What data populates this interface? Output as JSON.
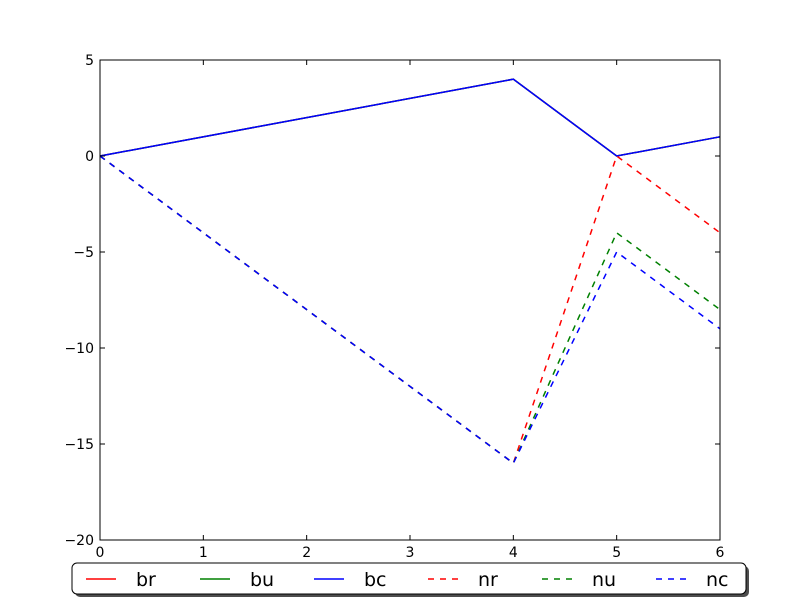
{
  "chart_data": {
    "type": "line",
    "title": "",
    "xlabel": "",
    "ylabel": "",
    "xlim": [
      0,
      6
    ],
    "ylim": [
      -20,
      5
    ],
    "xticks": [
      0,
      1,
      2,
      3,
      4,
      5,
      6
    ],
    "yticks": [
      5,
      0,
      -5,
      -10,
      -15,
      -20
    ],
    "xtick_labels": [
      "0",
      "1",
      "2",
      "3",
      "4",
      "5",
      "6"
    ],
    "ytick_labels": [
      "5",
      "0",
      "−5",
      "−10",
      "−15",
      "−20"
    ],
    "grid": false,
    "legend": {
      "placement": "bottom",
      "columns": 6,
      "rounded": true,
      "shadow": true
    },
    "series": [
      {
        "name": "br",
        "color": "#ff0000",
        "style": "solid",
        "points": [
          [
            0,
            0
          ],
          [
            4,
            4
          ],
          [
            5,
            0
          ],
          [
            6,
            1
          ]
        ]
      },
      {
        "name": "bu",
        "color": "#008000",
        "style": "solid",
        "points": [
          [
            0,
            0
          ],
          [
            4,
            4
          ],
          [
            5,
            0
          ],
          [
            6,
            1
          ]
        ]
      },
      {
        "name": "bc",
        "color": "#0000ff",
        "style": "solid",
        "points": [
          [
            0,
            0
          ],
          [
            4,
            4
          ],
          [
            5,
            0
          ],
          [
            6,
            1
          ]
        ]
      },
      {
        "name": "nr",
        "color": "#ff0000",
        "style": "dashed",
        "points": [
          [
            0,
            0
          ],
          [
            4,
            -16
          ],
          [
            5,
            0
          ],
          [
            6,
            -4
          ]
        ]
      },
      {
        "name": "nu",
        "color": "#008000",
        "style": "dashed",
        "points": [
          [
            0,
            0
          ],
          [
            4,
            -16
          ],
          [
            5,
            -4
          ],
          [
            6,
            -8
          ]
        ]
      },
      {
        "name": "nc",
        "color": "#0000ff",
        "style": "dashed",
        "points": [
          [
            0,
            0
          ],
          [
            4,
            -16
          ],
          [
            5,
            -5
          ],
          [
            6,
            -9
          ]
        ]
      }
    ]
  }
}
